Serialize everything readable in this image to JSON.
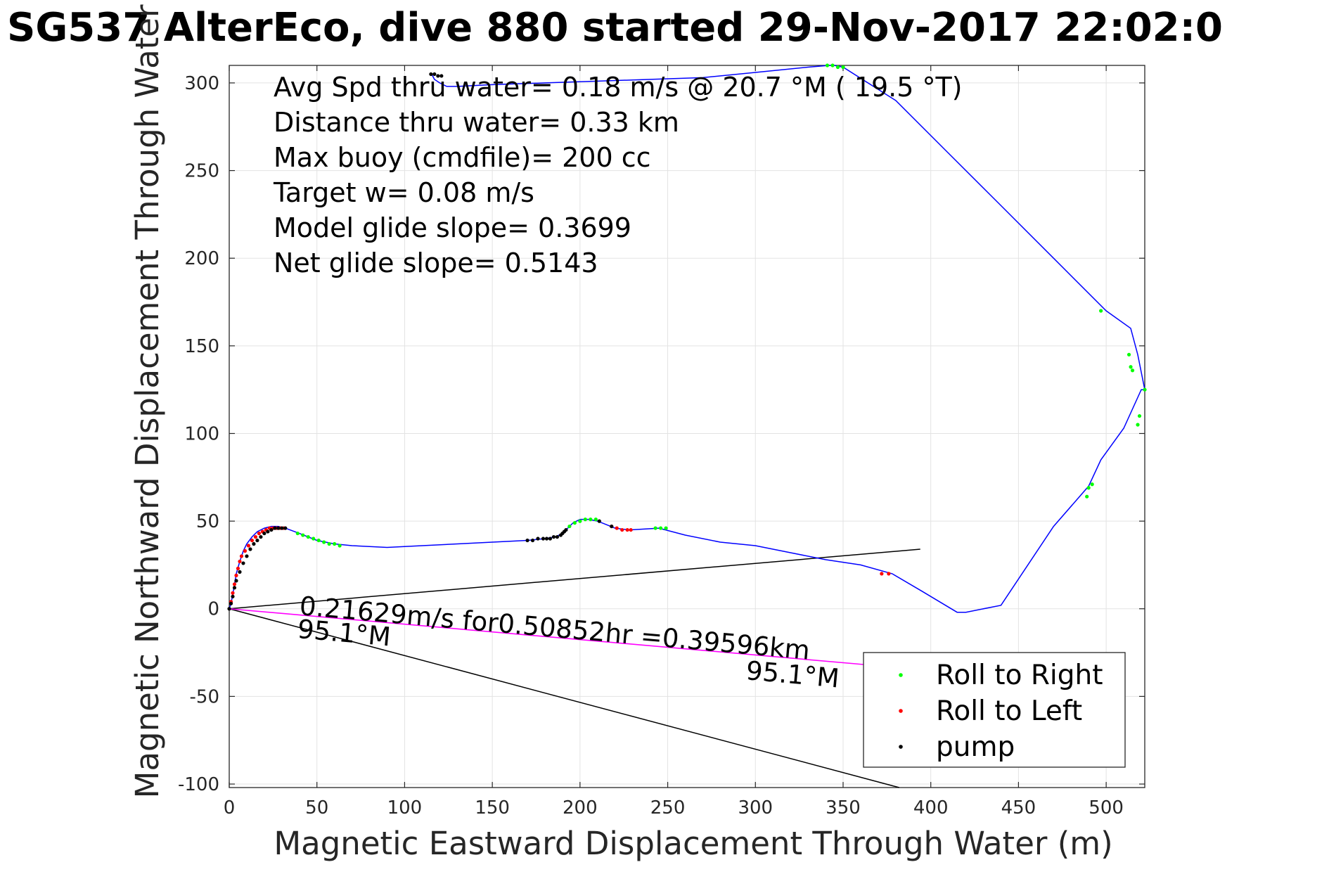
{
  "chart_data": {
    "type": "scatter",
    "title": "SG537 AlterEco, dive 880 started 29-Nov-2017 22:02:0",
    "xlabel": "Magnetic Eastward Displacement Through Water (m)",
    "ylabel": "Magnetic Northward Displacement Through Water (",
    "xlim": [
      0,
      522
    ],
    "ylim": [
      -102,
      310
    ],
    "xticks": [
      0,
      50,
      100,
      150,
      200,
      250,
      300,
      350,
      400,
      450,
      500
    ],
    "yticks": [
      300,
      250,
      200,
      150,
      100,
      50,
      0,
      -50,
      -100
    ],
    "grid": true,
    "legend_position": "bottom-right",
    "annotations": [
      "Avg Spd thru water=  0.18 m/s @  20.7 °M ( 19.5 °T)",
      "Distance thru water=  0.33 km",
      "Max buoy (cmdfile)= 200 cc",
      "Target w= 0.08 m/s",
      "Model glide slope= 0.3699",
      "Net glide slope= 0.5143"
    ],
    "current_label": "0.21629m/s for0.50852hr =0.39596km",
    "current_heading_label": "95.1°M",
    "current_heading_label_end": "95.1°M",
    "track": {
      "name": "track",
      "color": "#0000ff",
      "x": [
        0,
        1,
        2,
        3,
        4,
        6,
        8,
        10,
        13,
        16,
        20,
        24,
        28,
        32,
        40,
        50,
        60,
        70,
        90,
        110,
        130,
        150,
        170,
        180,
        186,
        190,
        193,
        196,
        200,
        205,
        210,
        215,
        220,
        228,
        245,
        260,
        280,
        300,
        320,
        340,
        360,
        378,
        395,
        415,
        420,
        440,
        470,
        490,
        497,
        510,
        520,
        522,
        518,
        514,
        500,
        470,
        440,
        410,
        380,
        350,
        345,
        342,
        330,
        300,
        270,
        240,
        210,
        180,
        150,
        130,
        124,
        120,
        117,
        116,
        115
      ],
      "y": [
        0,
        3,
        8,
        14,
        20,
        27,
        33,
        37,
        41,
        44,
        46,
        47,
        47,
        46,
        43,
        39,
        37,
        36,
        35,
        36,
        37,
        38,
        39,
        40,
        41,
        43,
        46,
        49,
        51,
        51,
        50,
        48,
        46,
        45,
        46,
        42,
        38,
        36,
        32,
        28,
        25,
        20,
        10,
        -2,
        -2,
        2,
        47,
        70,
        85,
        103,
        125,
        125,
        145,
        160,
        170,
        200,
        230,
        260,
        290,
        309,
        310,
        310,
        309,
        306,
        303,
        302,
        301,
        300,
        299,
        298,
        298,
        300,
        302,
        304,
        305
      ]
    },
    "current_vector": {
      "color": "#ff00ff",
      "x": [
        0,
        364
      ],
      "y": [
        0,
        -32
      ]
    },
    "guide_lines": [
      {
        "x": [
          0,
          394
        ],
        "y": [
          0,
          34
        ]
      },
      {
        "x": [
          0,
          382
        ],
        "y": [
          0,
          -102
        ]
      }
    ],
    "series": [
      {
        "name": "Roll to Right",
        "color": "#00ff00",
        "x": [
          39,
          42,
          45,
          48,
          51,
          54,
          57,
          60,
          63,
          194,
          197,
          200,
          203,
          206,
          209,
          243,
          246,
          249,
          341,
          344,
          347,
          350,
          497,
          513,
          514,
          515,
          522,
          519,
          518,
          492,
          490,
          489
        ],
        "y": [
          43,
          42,
          41,
          40,
          39,
          38,
          37,
          37,
          36,
          47,
          49,
          50,
          51,
          51,
          51,
          46,
          46,
          46,
          310,
          310,
          309,
          309,
          170,
          145,
          138,
          136,
          125,
          110,
          105,
          71,
          69,
          64
        ]
      },
      {
        "name": "Roll to Left",
        "color": "#ff0000",
        "x": [
          1,
          2,
          3,
          4,
          5,
          6,
          7,
          9,
          11,
          13,
          15,
          17,
          19,
          21,
          23,
          25,
          27,
          29,
          31,
          218,
          221,
          224,
          227,
          229,
          372,
          376
        ],
        "y": [
          4,
          9,
          14,
          19,
          23,
          27,
          30,
          33,
          36,
          39,
          41,
          43,
          44,
          45,
          46,
          46,
          46,
          46,
          46,
          47,
          46,
          45,
          45,
          45,
          20,
          20
        ]
      },
      {
        "name": "pump",
        "color": "#000000",
        "x": [
          0,
          1,
          2,
          3,
          4,
          6,
          8,
          10,
          12,
          14,
          16,
          18,
          20,
          22,
          24,
          26,
          28,
          30,
          32,
          170,
          173,
          176,
          179,
          181,
          183,
          185,
          187,
          189,
          190,
          191,
          192,
          211,
          218,
          115,
          117,
          119,
          121
        ],
        "y": [
          0,
          3,
          7,
          12,
          16,
          21,
          26,
          30,
          34,
          37,
          39,
          41,
          43,
          44,
          45,
          46,
          46,
          46,
          46,
          39,
          39,
          40,
          40,
          40,
          40,
          41,
          41,
          42,
          43,
          44,
          45,
          50,
          47,
          305,
          305,
          304,
          304
        ]
      }
    ]
  }
}
